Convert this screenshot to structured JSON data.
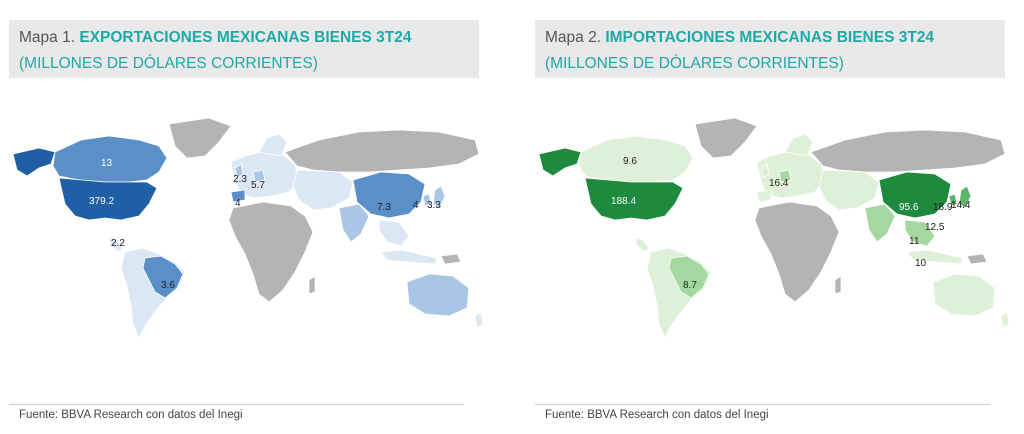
{
  "maps": [
    {
      "prefix": "Mapa 1.",
      "title": "EXPORTACIONES MEXICANAS BIENES 3T24",
      "subtitle": "(MILLONES DE DÓLARES CORRIENTES)",
      "source": "Fuente: BBVA Research con datos del Inegi",
      "colors": {
        "strong": "#1f5fa6",
        "medium": "#5b8fc9",
        "light": "#a9c6e6",
        "faint": "#dbe7f4",
        "nodata": "#b4b4b4"
      },
      "labels": {
        "usa": "379.2",
        "canada": "13",
        "central_america": "2.2",
        "brazil": "3.6",
        "uk": "2.3",
        "germany": "5.7",
        "spain": "4",
        "china": "7.3",
        "korea": "4",
        "japan": "3.3"
      }
    },
    {
      "prefix": "Mapa 2.",
      "title": "IMPORTACIONES MEXICANAS BIENES 3T24",
      "subtitle": "(MILLONES DE DÓLARES CORRIENTES)",
      "source": "Fuente: BBVA Research con datos del Inegi",
      "colors": {
        "strong": "#1d8a3e",
        "medium": "#5db56a",
        "light": "#a5d7a0",
        "faint": "#dff0d8",
        "nodata": "#b4b4b4"
      },
      "labels": {
        "usa": "188.4",
        "canada": "9.6",
        "brazil": "8.7",
        "germany": "16.4",
        "china": "95.6",
        "korea": "18.9",
        "japan": "14.4",
        "taiwan": "12.5",
        "vietnam": "11",
        "malaysia": "10"
      }
    }
  ]
}
